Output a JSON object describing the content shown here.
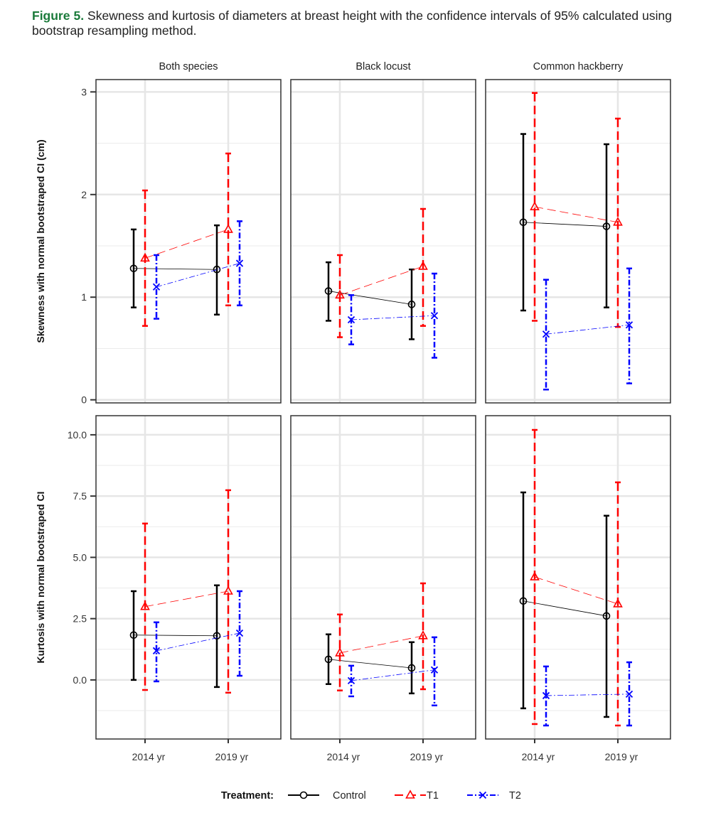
{
  "caption": {
    "label": "Figure 5.",
    "text": " Skewness and kurtosis of diameters at breast height with the confidence intervals of 95% calculated using bootstrap resampling method."
  },
  "chart_data": {
    "type": "errorbar-line",
    "facets": [
      "Both species",
      "Black locust",
      "Common hackberry"
    ],
    "categories": [
      "2014 yr",
      "2019 yr"
    ],
    "legend": {
      "title": "Treatment:",
      "placement": "bottom",
      "entries": [
        "Control",
        "T1",
        "T2"
      ]
    },
    "colors": {
      "Control": "#000000",
      "T1": "#ff0000",
      "T2": "#0000ff"
    },
    "grid": true,
    "rows": [
      {
        "ylabel": "Skewness with normal bootstraped CI (cm)",
        "ylim": [
          -0.03,
          3.12
        ],
        "yticks": [
          0,
          1,
          2,
          3
        ],
        "ytick_labels": [
          "0",
          "1",
          "2",
          "3"
        ],
        "panels": [
          {
            "Control": [
              [
                1.28,
                0.9,
                1.66
              ],
              [
                1.27,
                0.83,
                1.7
              ]
            ],
            "T1": [
              [
                1.38,
                0.72,
                2.04
              ],
              [
                1.66,
                0.92,
                2.4
              ]
            ],
            "T2": [
              [
                1.1,
                0.79,
                1.41
              ],
              [
                1.33,
                0.92,
                1.74
              ]
            ]
          },
          {
            "Control": [
              [
                1.06,
                0.77,
                1.34
              ],
              [
                0.93,
                0.59,
                1.27
              ]
            ],
            "T1": [
              [
                1.02,
                0.61,
                1.41
              ],
              [
                1.3,
                0.72,
                1.86
              ]
            ],
            "T2": [
              [
                0.78,
                0.54,
                1.02
              ],
              [
                0.82,
                0.41,
                1.23
              ]
            ]
          },
          {
            "Control": [
              [
                1.73,
                0.87,
                2.59
              ],
              [
                1.69,
                0.9,
                2.49
              ]
            ],
            "T1": [
              [
                1.88,
                0.77,
                2.99
              ],
              [
                1.73,
                0.71,
                2.74
              ]
            ],
            "T2": [
              [
                0.64,
                0.1,
                1.17
              ],
              [
                0.73,
                0.16,
                1.28
              ]
            ]
          }
        ]
      },
      {
        "ylabel": "Kurtosis with normal bootstraped CI",
        "ylim": [
          -2.41,
          10.78
        ],
        "yticks": [
          0,
          2.5,
          5,
          7.5,
          10
        ],
        "ytick_labels": [
          "0.0",
          "2.5",
          "5.0",
          "7.5",
          "10.0"
        ],
        "panels": [
          {
            "Control": [
              [
                1.83,
                0.0,
                3.62
              ],
              [
                1.8,
                -0.29,
                3.86
              ]
            ],
            "T1": [
              [
                2.99,
                -0.41,
                6.38
              ],
              [
                3.62,
                -0.52,
                7.74
              ]
            ],
            "T2": [
              [
                1.19,
                -0.06,
                2.35
              ],
              [
                1.91,
                0.17,
                3.62
              ]
            ]
          },
          {
            "Control": [
              [
                0.84,
                -0.17,
                1.86
              ],
              [
                0.49,
                -0.55,
                1.54
              ]
            ],
            "T1": [
              [
                1.1,
                -0.43,
                2.67
              ],
              [
                1.8,
                -0.38,
                3.94
              ]
            ],
            "T2": [
              [
                -0.03,
                -0.67,
                0.58
              ],
              [
                0.41,
                -1.04,
                1.74
              ]
            ]
          },
          {
            "Control": [
              [
                3.22,
                -1.16,
                7.65
              ],
              [
                2.61,
                -1.51,
                6.7
              ]
            ],
            "T1": [
              [
                4.2,
                -1.8,
                10.2
              ],
              [
                3.1,
                -1.86,
                8.06
              ]
            ],
            "T2": [
              [
                -0.64,
                -1.86,
                0.55
              ],
              [
                -0.58,
                -1.86,
                0.72
              ]
            ]
          }
        ]
      }
    ]
  }
}
